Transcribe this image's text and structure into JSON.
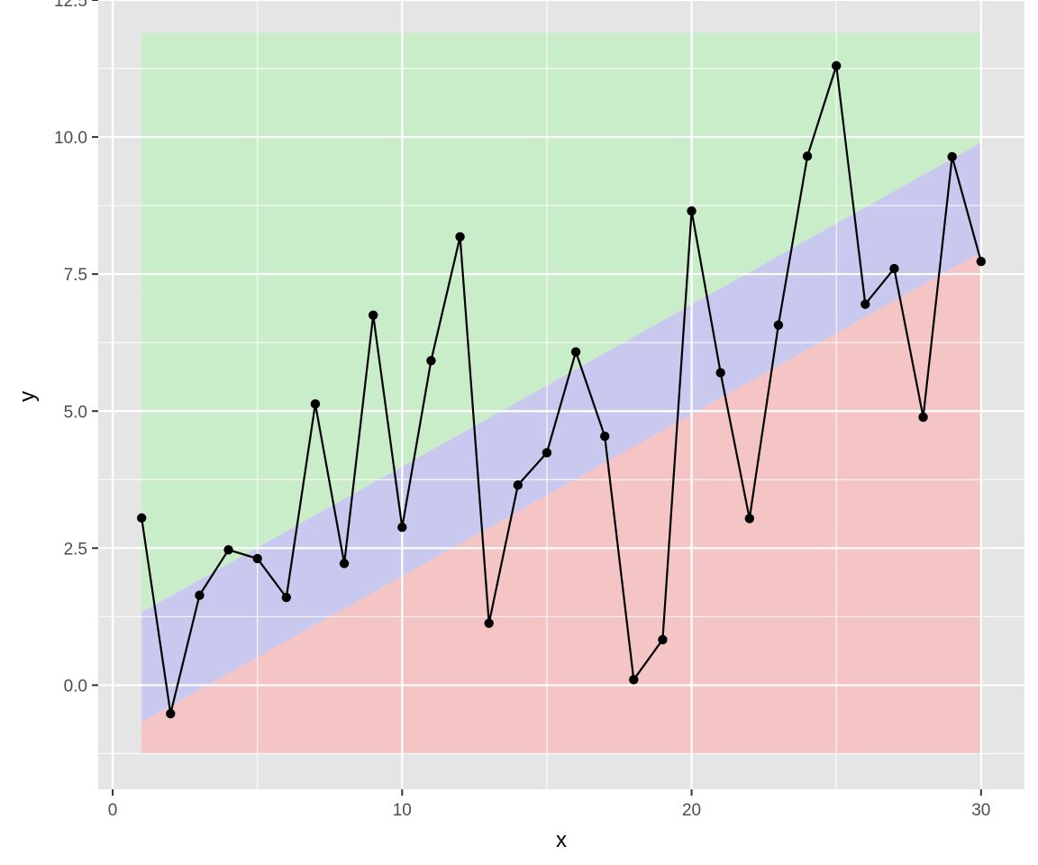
{
  "chart_data": {
    "type": "line",
    "title": "",
    "xlabel": "x",
    "ylabel": "y",
    "xlim": [
      -0.5,
      31.5
    ],
    "ylim": [
      -1.9,
      12.5
    ],
    "x_ticks": [
      0,
      10,
      20,
      30
    ],
    "x_tick_labels": [
      "0",
      "10",
      "20",
      "30"
    ],
    "y_ticks": [
      0,
      2.5,
      5,
      7.5,
      10,
      12.5
    ],
    "y_tick_labels": [
      "0.0",
      "2.5",
      "5.0",
      "7.5",
      "10.0",
      "12.5"
    ],
    "grid": true,
    "bands": [
      {
        "color": "#f5c4c4",
        "lower": [
          [
            1,
            -1.25
          ],
          [
            30,
            -1.25
          ]
        ],
        "upper": [
          [
            1,
            -0.67
          ],
          [
            30,
            7.9
          ]
        ]
      },
      {
        "color": "#c9c9f0",
        "lower": [
          [
            1,
            -0.67
          ],
          [
            30,
            7.9
          ]
        ],
        "upper": [
          [
            1,
            1.33
          ],
          [
            30,
            9.9
          ]
        ]
      },
      {
        "color": "#c8edc8",
        "lower": [
          [
            1,
            1.33
          ],
          [
            30,
            9.9
          ]
        ],
        "upper": [
          [
            1,
            11.9
          ],
          [
            30,
            11.9
          ]
        ]
      }
    ],
    "series": [
      {
        "color": "#000000",
        "x": [
          1,
          2,
          3,
          4,
          5,
          6,
          7,
          8,
          9,
          10,
          11,
          12,
          13,
          14,
          15,
          16,
          17,
          18,
          19,
          20,
          21,
          22,
          23,
          24,
          25,
          26,
          27,
          28,
          29,
          30
        ],
        "y": [
          3.05,
          -0.52,
          1.64,
          2.47,
          2.31,
          1.6,
          5.13,
          2.22,
          6.75,
          2.88,
          5.92,
          8.18,
          1.13,
          3.65,
          4.24,
          6.08,
          4.54,
          0.1,
          0.83,
          8.65,
          5.7,
          3.04,
          6.57,
          9.65,
          11.3,
          6.95,
          7.6,
          4.89,
          9.64,
          7.73
        ]
      }
    ]
  }
}
